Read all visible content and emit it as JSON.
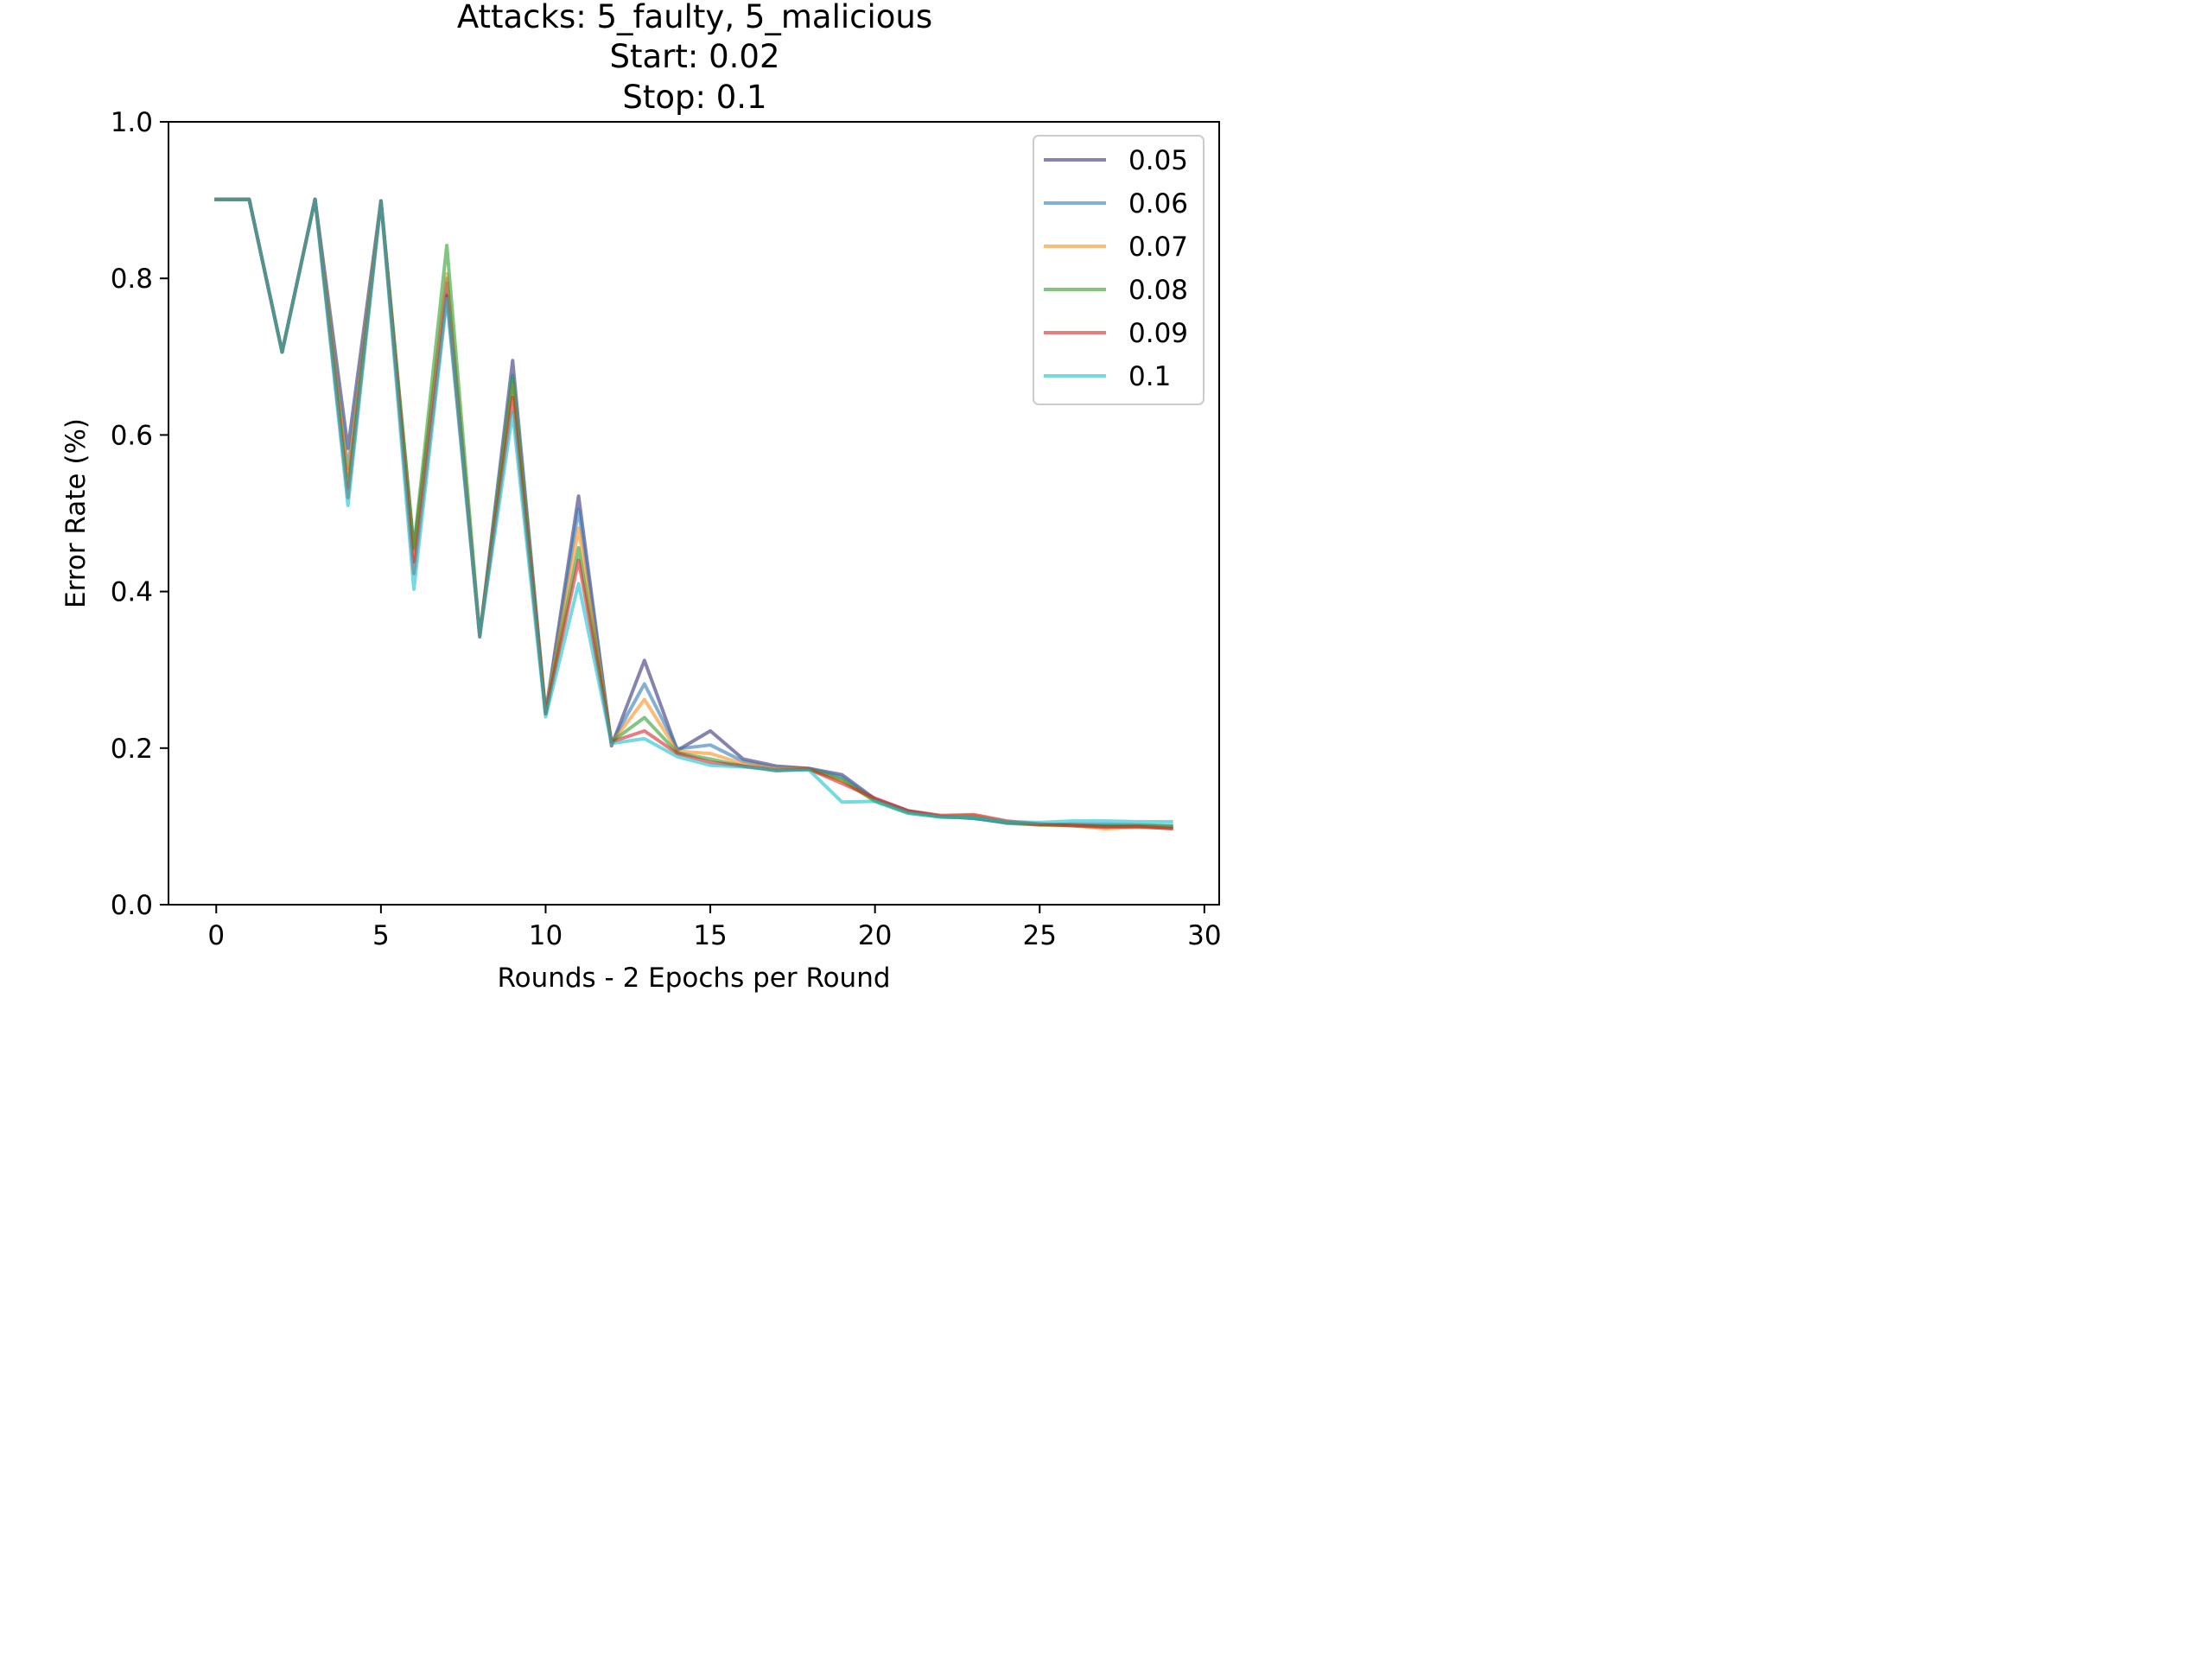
{
  "chart_data": {
    "type": "line",
    "title_lines": [
      "Attacks: 5_faulty, 5_malicious",
      "Start: 0.02",
      "Stop: 0.1"
    ],
    "xlabel": "Rounds - 2 Epochs per Round",
    "ylabel": "Error Rate (%)",
    "xlim": [
      -1.45,
      30.45
    ],
    "ylim": [
      0.0,
      1.0
    ],
    "xticks": [
      0,
      5,
      10,
      15,
      20,
      25,
      30
    ],
    "xtick_labels": [
      "0",
      "5",
      "10",
      "15",
      "20",
      "25",
      "30"
    ],
    "yticks": [
      0.0,
      0.2,
      0.4,
      0.6,
      0.8,
      1.0
    ],
    "ytick_labels": [
      "0.0",
      "0.2",
      "0.4",
      "0.6",
      "0.8",
      "1.0"
    ],
    "grid": false,
    "legend_position": "top-right",
    "x": [
      0,
      1,
      2,
      3,
      4,
      5,
      6,
      7,
      8,
      9,
      10,
      11,
      12,
      13,
      14,
      15,
      16,
      17,
      18,
      19,
      20,
      21,
      22,
      23,
      24,
      25,
      26,
      27,
      28,
      29
    ],
    "series": [
      {
        "name": "0.05",
        "color": "#33327a",
        "values": [
          0.901,
          0.901,
          0.706,
          0.901,
          0.583,
          0.899,
          0.454,
          0.794,
          0.342,
          0.695,
          0.245,
          0.522,
          0.203,
          0.312,
          0.197,
          0.222,
          0.186,
          0.177,
          0.174,
          0.166,
          0.135,
          0.12,
          0.113,
          0.11,
          0.105,
          0.103,
          0.101,
          0.1,
          0.099,
          0.098
        ]
      },
      {
        "name": "0.06",
        "color": "#2f79b4",
        "values": [
          0.901,
          0.901,
          0.706,
          0.901,
          0.557,
          0.899,
          0.438,
          0.8,
          0.344,
          0.676,
          0.244,
          0.505,
          0.206,
          0.282,
          0.199,
          0.204,
          0.183,
          0.175,
          0.174,
          0.163,
          0.134,
          0.119,
          0.112,
          0.111,
          0.104,
          0.102,
          0.103,
          0.103,
          0.102,
          0.101
        ]
      },
      {
        "name": "0.07",
        "color": "#ff8c1e",
        "values": [
          0.901,
          0.901,
          0.706,
          0.901,
          0.547,
          0.899,
          0.446,
          0.806,
          0.344,
          0.664,
          0.245,
          0.481,
          0.206,
          0.262,
          0.196,
          0.193,
          0.18,
          0.174,
          0.173,
          0.158,
          0.133,
          0.118,
          0.113,
          0.114,
          0.106,
          0.102,
          0.101,
          0.097,
          0.099,
          0.098
        ]
      },
      {
        "name": "0.08",
        "color": "#2ba02d",
        "values": [
          0.901,
          0.901,
          0.706,
          0.901,
          0.532,
          0.899,
          0.456,
          0.842,
          0.344,
          0.672,
          0.244,
          0.456,
          0.208,
          0.239,
          0.194,
          0.186,
          0.177,
          0.171,
          0.173,
          0.16,
          0.132,
          0.117,
          0.112,
          0.111,
          0.105,
          0.102,
          0.102,
          0.101,
          0.101,
          0.1
        ]
      },
      {
        "name": "0.09",
        "color": "#d62728",
        "values": [
          0.901,
          0.901,
          0.706,
          0.901,
          0.52,
          0.899,
          0.423,
          0.778,
          0.344,
          0.648,
          0.244,
          0.44,
          0.208,
          0.222,
          0.193,
          0.182,
          0.177,
          0.172,
          0.173,
          0.155,
          0.136,
          0.12,
          0.114,
          0.115,
          0.107,
          0.103,
          0.101,
          0.099,
          0.1,
          0.097
        ]
      },
      {
        "name": "0.1",
        "color": "#17bfcf",
        "values": [
          0.901,
          0.901,
          0.706,
          0.901,
          0.51,
          0.899,
          0.403,
          0.774,
          0.344,
          0.628,
          0.24,
          0.41,
          0.206,
          0.212,
          0.189,
          0.178,
          0.176,
          0.172,
          0.172,
          0.131,
          0.132,
          0.117,
          0.112,
          0.111,
          0.106,
          0.105,
          0.107,
          0.107,
          0.106,
          0.106
        ]
      }
    ]
  }
}
